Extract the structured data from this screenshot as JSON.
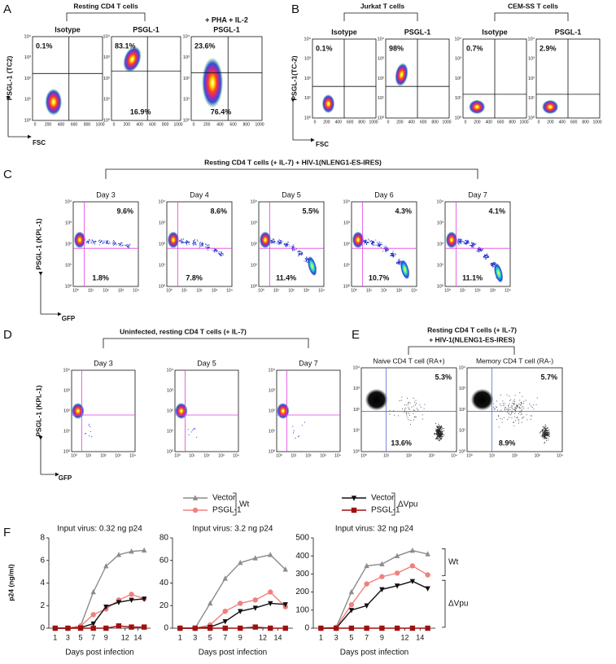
{
  "panels": {
    "A": {
      "label": "A",
      "group_title": "Resting CD4 T cells",
      "y_axis": "PSGL-1 (TC2)",
      "x_axis": "FSC",
      "yticks": [
        "10⁰",
        "10¹",
        "10²",
        "10³",
        "10⁴"
      ],
      "xticks": [
        "0",
        "200",
        "400",
        "600",
        "800",
        "1000"
      ],
      "plots": [
        {
          "title": [
            "Isotype"
          ],
          "upper": "0.1%"
        },
        {
          "title": [
            "PSGL-1"
          ],
          "upper": "83.1%",
          "lower": "16.9%"
        },
        {
          "title": [
            "+ PHA + IL-2",
            "PSGL-1"
          ],
          "upper": "23.6%",
          "lower": "76.4%"
        }
      ]
    },
    "B": {
      "label": "B",
      "group_titles": [
        "Jurkat T cells",
        "CEM-SS T cells"
      ],
      "y_axis": "PSGL-1(TC-2)",
      "x_axis": "FSC",
      "yticks": [
        "10⁰",
        "10¹",
        "10²",
        "10³",
        "10⁴"
      ],
      "xticks": [
        "0",
        "200",
        "400",
        "600",
        "800",
        "1000"
      ],
      "plots": [
        {
          "title": [
            "Isotype"
          ],
          "upper": "0.1%"
        },
        {
          "title": [
            "PSGL-1"
          ],
          "upper": "98%"
        },
        {
          "title": [
            "Isotype"
          ],
          "upper": "0.7%"
        },
        {
          "title": [
            "PSGL-1"
          ],
          "upper": "2.9%"
        }
      ]
    },
    "C": {
      "label": "C",
      "group_title": [
        "Resting CD4 T cells (+ IL-7) + HIV-1(NLENG1-ES-IRES)"
      ],
      "y_axis": "PSGL-1 (KPL-1)",
      "x_axis": "GFP",
      "yticks": [
        "10⁰",
        "10¹",
        "10²",
        "10³",
        "10⁴"
      ],
      "xticks": [
        "10⁰",
        "10¹",
        "10²",
        "10³",
        "10⁴"
      ],
      "plots": [
        {
          "title": [
            "Day 3"
          ],
          "upper": "9.6%",
          "lower": "1.8%"
        },
        {
          "title": [
            "Day 4"
          ],
          "upper": "8.6%",
          "lower": "7.8%"
        },
        {
          "title": [
            "Day 5"
          ],
          "upper": "5.5%",
          "lower": "11.4%"
        },
        {
          "title": [
            "Day 6"
          ],
          "upper": "4.3%",
          "lower": "10.7%"
        },
        {
          "title": [
            "Day 7"
          ],
          "upper": "4.1%",
          "lower": "11.1%"
        }
      ]
    },
    "D": {
      "label": "D",
      "group_title": [
        "Uninfected, resting CD4 T cells (+ IL-7)"
      ],
      "y_axis": "PSGL-1 (KPL-1)",
      "x_axis": "GFP",
      "yticks": [
        "10⁰",
        "10¹",
        "10²",
        "10³",
        "10⁴"
      ],
      "xticks": [
        "10⁰",
        "10¹",
        "10²",
        "10³",
        "10⁴"
      ],
      "plots": [
        {
          "title": [
            "Day 3"
          ]
        },
        {
          "title": [
            "Day 5"
          ]
        },
        {
          "title": [
            "Day 7"
          ]
        }
      ]
    },
    "E": {
      "label": "E",
      "group_title": [
        "Resting CD4 T cells (+ IL-7)",
        "+ HIV-1(NLENG1-ES-IRES)"
      ],
      "yticks": [
        "10⁰",
        "10¹",
        "10²",
        "10³",
        "10⁴"
      ],
      "xticks": [
        "10⁰",
        "10¹",
        "10²",
        "10³",
        "10⁴"
      ],
      "plots": [
        {
          "title": [
            "Naive CD4 T cell (RA+)"
          ],
          "upper": "5.3%",
          "lower": "13.6%"
        },
        {
          "title": [
            "Memory CD4 T cell (RA-)"
          ],
          "upper": "5.7%",
          "lower": "8.9%"
        }
      ]
    },
    "F": {
      "label": "F"
    }
  },
  "chart_data": [
    {
      "type": "line",
      "title": "Input virus: 0.32 ng p24",
      "ylabel": "p24 (ng/ml)",
      "xlabel": "Days post infection",
      "x": [
        1,
        3,
        5,
        7,
        9,
        11,
        13,
        15
      ],
      "xlim": [
        0,
        16
      ],
      "xticks": [
        1,
        3,
        5,
        7,
        9,
        12,
        14
      ],
      "ylim": [
        0,
        8
      ],
      "yticks": [
        0,
        2,
        4,
        6,
        8
      ],
      "series": [
        {
          "name": "Vector",
          "group": "Wt",
          "color": "#8c8c8c",
          "marker": "triangle-up",
          "values": [
            0,
            0,
            0.2,
            3.2,
            5.5,
            6.5,
            6.8,
            6.9
          ]
        },
        {
          "name": "PSGL-1",
          "group": "Wt",
          "color": "#f08080",
          "marker": "circle",
          "values": [
            0,
            0,
            0.2,
            1.2,
            1.7,
            2.5,
            3.0,
            2.6
          ]
        },
        {
          "name": "Vector",
          "group": "ΔVpu",
          "color": "#111111",
          "marker": "triangle-down",
          "values": [
            0,
            0,
            0.05,
            0.4,
            1.9,
            2.3,
            2.5,
            2.6
          ]
        },
        {
          "name": "PSGL-1",
          "group": "ΔVpu",
          "color": "#a01010",
          "marker": "square",
          "values": [
            0,
            0,
            0,
            0,
            0,
            0.2,
            0.1,
            0.1
          ]
        }
      ]
    },
    {
      "type": "line",
      "title": "Input virus: 3.2 ng p24",
      "xlabel": "Days post infection",
      "x": [
        1,
        3,
        5,
        7,
        9,
        11,
        13,
        15
      ],
      "xlim": [
        0,
        16
      ],
      "xticks": [
        1,
        3,
        5,
        7,
        9,
        12,
        14
      ],
      "ylim": [
        0,
        80
      ],
      "yticks": [
        0,
        20,
        40,
        60,
        80
      ],
      "series": [
        {
          "name": "Vector",
          "group": "Wt",
          "color": "#8c8c8c",
          "marker": "triangle-up",
          "values": [
            0,
            0,
            22,
            44,
            58,
            62,
            65,
            52
          ]
        },
        {
          "name": "PSGL-1",
          "group": "Wt",
          "color": "#f08080",
          "marker": "circle",
          "values": [
            0,
            0,
            3,
            15,
            22,
            25,
            32,
            19
          ]
        },
        {
          "name": "Vector",
          "group": "ΔVpu",
          "color": "#111111",
          "marker": "triangle-down",
          "values": [
            0,
            0,
            1,
            6,
            15,
            18,
            22,
            21
          ]
        },
        {
          "name": "PSGL-1",
          "group": "ΔVpu",
          "color": "#a01010",
          "marker": "square",
          "values": [
            0,
            0,
            0,
            0,
            0,
            1,
            0,
            0
          ]
        }
      ]
    },
    {
      "type": "line",
      "title": "Input virus: 32 ng p24",
      "xlabel": "Days post infection",
      "x": [
        1,
        3,
        5,
        7,
        9,
        11,
        13,
        15
      ],
      "xlim": [
        0,
        16
      ],
      "xticks": [
        1,
        3,
        5,
        7,
        9,
        12,
        14
      ],
      "ylim": [
        0,
        500
      ],
      "yticks": [
        0,
        100,
        200,
        300,
        400,
        500
      ],
      "annotations": [
        "Wt",
        "ΔVpu"
      ],
      "series": [
        {
          "name": "Vector",
          "group": "Wt",
          "color": "#8c8c8c",
          "marker": "triangle-up",
          "values": [
            0,
            5,
            200,
            345,
            355,
            400,
            430,
            410
          ]
        },
        {
          "name": "PSGL-1",
          "group": "Wt",
          "color": "#f08080",
          "marker": "circle",
          "values": [
            0,
            5,
            130,
            245,
            285,
            305,
            345,
            295
          ]
        },
        {
          "name": "Vector",
          "group": "ΔVpu",
          "color": "#111111",
          "marker": "triangle-down",
          "values": [
            0,
            0,
            100,
            125,
            215,
            235,
            260,
            220
          ]
        },
        {
          "name": "PSGL-1",
          "group": "ΔVpu",
          "color": "#a01010",
          "marker": "square",
          "values": [
            0,
            0,
            0,
            0,
            0,
            0,
            0,
            0
          ]
        }
      ]
    }
  ]
}
